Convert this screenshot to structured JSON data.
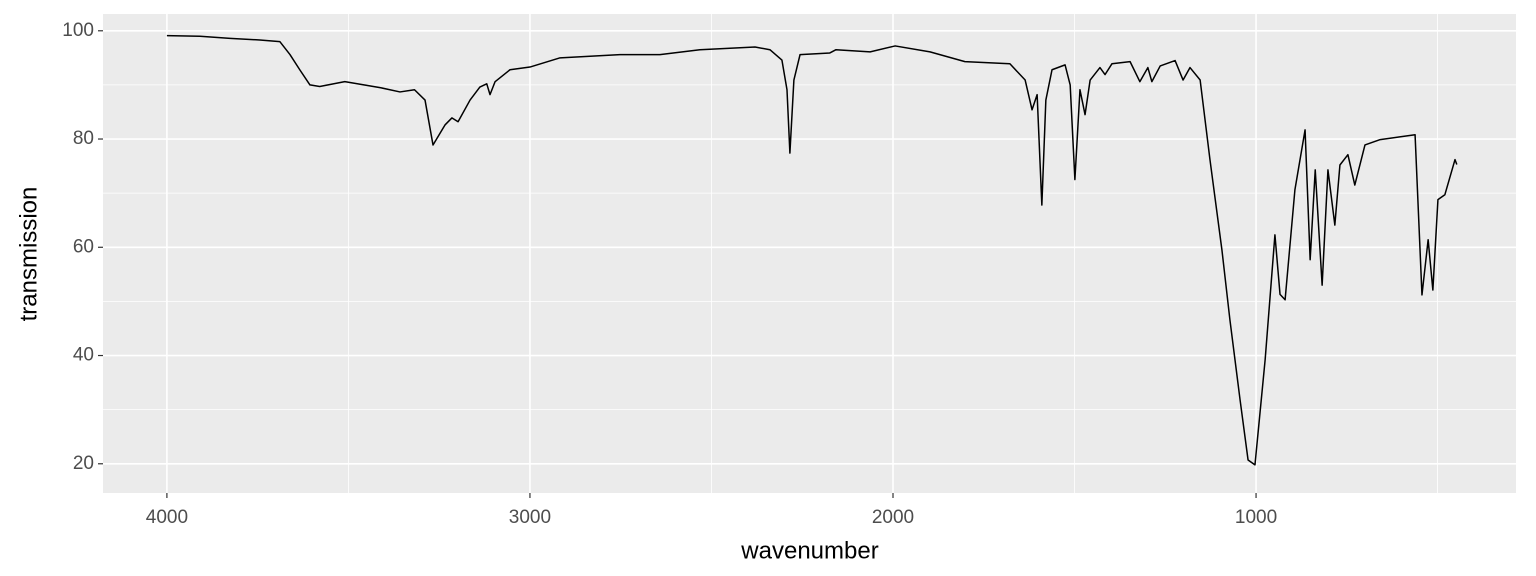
{
  "chart_data": {
    "type": "line",
    "x_label": "wavenumber",
    "y_label": "transmission",
    "x": [
      4000,
      3909,
      3826,
      3744,
      3689,
      3661,
      3634,
      3606,
      3579,
      3510,
      3413,
      3358,
      3318,
      3289,
      3267,
      3234,
      3215,
      3198,
      3165,
      3138,
      3119,
      3110,
      3096,
      3055,
      3000,
      2917,
      2752,
      2642,
      2532,
      2380,
      2339,
      2306,
      2292,
      2284,
      2273,
      2256,
      2174,
      2157,
      2063,
      1994,
      1898,
      1802,
      1678,
      1636,
      1617,
      1603,
      1590,
      1579,
      1562,
      1526,
      1512,
      1499,
      1485,
      1471,
      1457,
      1430,
      1416,
      1397,
      1347,
      1320,
      1298,
      1287,
      1264,
      1223,
      1201,
      1182,
      1154,
      1127,
      1094,
      1072,
      1044,
      1022,
      1003,
      975,
      948,
      934,
      920,
      893,
      865,
      851,
      837,
      818,
      802,
      783,
      769,
      747,
      728,
      700,
      658,
      562,
      543,
      526,
      513,
      499,
      480,
      452,
      447
    ],
    "values": [
      99.1,
      99.0,
      98.6,
      98.3,
      98.0,
      95.6,
      92.8,
      90.0,
      89.7,
      90.6,
      89.5,
      88.7,
      89.1,
      87.2,
      78.9,
      82.6,
      83.9,
      83.2,
      87.2,
      89.6,
      90.2,
      88.2,
      90.6,
      92.8,
      93.3,
      95.0,
      95.6,
      95.6,
      96.5,
      97.0,
      96.5,
      94.6,
      89.1,
      77.4,
      90.9,
      95.6,
      95.9,
      96.5,
      96.1,
      97.2,
      96.1,
      94.3,
      93.9,
      90.9,
      85.4,
      88.2,
      67.8,
      87.2,
      92.8,
      93.7,
      90.0,
      72.5,
      89.1,
      84.5,
      90.9,
      93.2,
      91.9,
      93.9,
      94.3,
      90.6,
      93.2,
      90.6,
      93.5,
      94.5,
      90.9,
      93.2,
      90.9,
      76.2,
      59.5,
      46.6,
      31.8,
      20.7,
      19.8,
      39.2,
      62.3,
      51.3,
      50.3,
      70.6,
      81.7,
      57.7,
      74.3,
      53.0,
      74.3,
      64.1,
      75.2,
      77.1,
      71.5,
      78.9,
      79.9,
      80.8,
      51.2,
      61.4,
      52.1,
      68.8,
      69.7,
      76.2,
      75.3
    ],
    "color": "#000000",
    "xlim": [
      4176,
      284
    ],
    "xticks": [
      4000,
      3000,
      2000,
      1000
    ],
    "ylim": [
      14.6,
      103.1
    ],
    "yticks": [
      20,
      40,
      60,
      80,
      100
    ],
    "grid": true,
    "minor_grid": true
  }
}
